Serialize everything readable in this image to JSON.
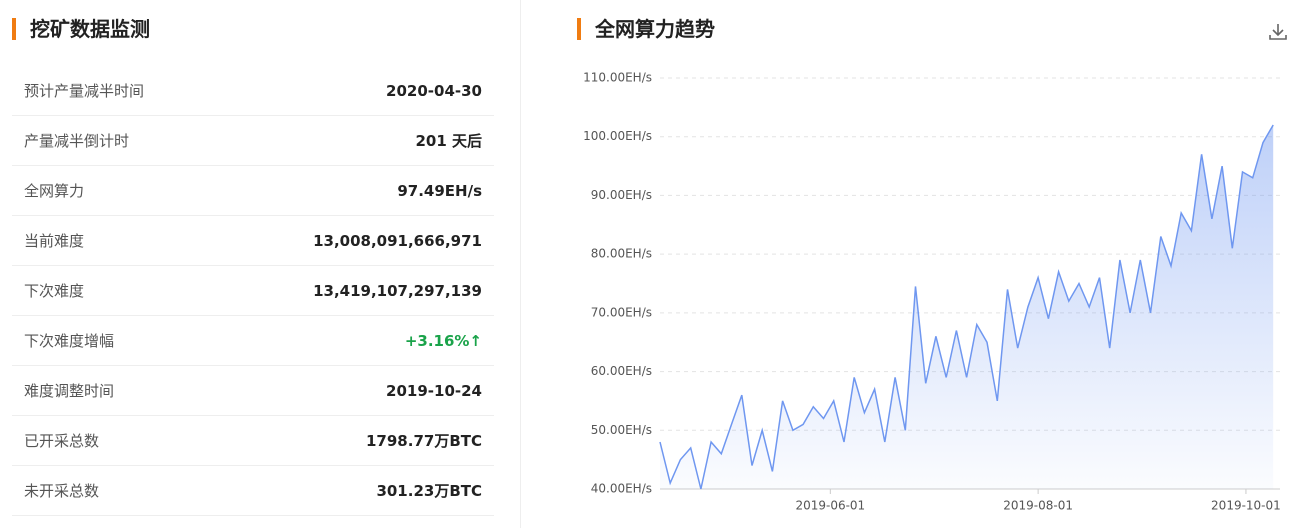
{
  "table": {
    "title": "挖矿数据监测",
    "rows": [
      [
        "预计产量减半时间",
        "2020-04-30"
      ],
      [
        "产量减半倒计时",
        "201 天后"
      ],
      [
        "全网算力",
        "97.49EH/s"
      ],
      [
        "当前难度",
        "13,008,091,666,971"
      ],
      [
        "下次难度",
        "13,419,107,297,139"
      ],
      [
        "下次难度增幅",
        "+3.16%↑"
      ],
      [
        "难度调整时间",
        "2019-10-24"
      ],
      [
        "已开采总数",
        "1798.77万BTC"
      ],
      [
        "未开采总数",
        "301.23万BTC"
      ]
    ]
  },
  "chart_data": {
    "type": "line",
    "title": "全网算力趋势",
    "color": "#6f97f0",
    "grid": true,
    "x": [
      "2019-04-12",
      "2019-04-15",
      "2019-04-18",
      "2019-04-21",
      "2019-04-24",
      "2019-04-27",
      "2019-04-30",
      "2019-05-03",
      "2019-05-06",
      "2019-05-09",
      "2019-05-12",
      "2019-05-15",
      "2019-05-18",
      "2019-05-21",
      "2019-05-24",
      "2019-05-27",
      "2019-05-30",
      "2019-06-02",
      "2019-06-05",
      "2019-06-08",
      "2019-06-11",
      "2019-06-14",
      "2019-06-17",
      "2019-06-20",
      "2019-06-23",
      "2019-06-26",
      "2019-06-29",
      "2019-07-02",
      "2019-07-05",
      "2019-07-08",
      "2019-07-11",
      "2019-07-14",
      "2019-07-17",
      "2019-07-20",
      "2019-07-23",
      "2019-07-26",
      "2019-07-29",
      "2019-08-01",
      "2019-08-04",
      "2019-08-07",
      "2019-08-10",
      "2019-08-13",
      "2019-08-16",
      "2019-08-19",
      "2019-08-22",
      "2019-08-25",
      "2019-08-28",
      "2019-08-31",
      "2019-09-03",
      "2019-09-06",
      "2019-09-09",
      "2019-09-12",
      "2019-09-15",
      "2019-09-18",
      "2019-09-21",
      "2019-09-24",
      "2019-09-27",
      "2019-09-30",
      "2019-10-03",
      "2019-10-06",
      "2019-10-09"
    ],
    "values": [
      48,
      41,
      45,
      47,
      40,
      48,
      46,
      51,
      56,
      44,
      50,
      43,
      55,
      50,
      51,
      54,
      52,
      55,
      48,
      59,
      53,
      57,
      48,
      59,
      50,
      74.5,
      58,
      66,
      59,
      67,
      59,
      68,
      65,
      55,
      74,
      64,
      71,
      76,
      69,
      77,
      72,
      75,
      71,
      76,
      64,
      79,
      70,
      79,
      70,
      83,
      78,
      87,
      84,
      97,
      86,
      95,
      81,
      94,
      93,
      99,
      102
    ],
    "xlim": [
      "2019-04-12",
      "2019-10-11"
    ],
    "xticks": [
      "2019-06-01",
      "2019-08-01",
      "2019-10-01"
    ],
    "ylim": [
      40,
      110
    ],
    "yticks": [
      {
        "value": 40,
        "label": "40.00EH/s"
      },
      {
        "value": 50,
        "label": "50.00EH/s"
      },
      {
        "value": 60,
        "label": "60.00EH/s"
      },
      {
        "value": 70,
        "label": "70.00EH/s"
      },
      {
        "value": 80,
        "label": "80.00EH/s"
      },
      {
        "value": 90,
        "label": "90.00EH/s"
      },
      {
        "value": 100,
        "label": "100.00EH/s"
      },
      {
        "value": 110,
        "label": "110.00EH/s"
      }
    ]
  }
}
